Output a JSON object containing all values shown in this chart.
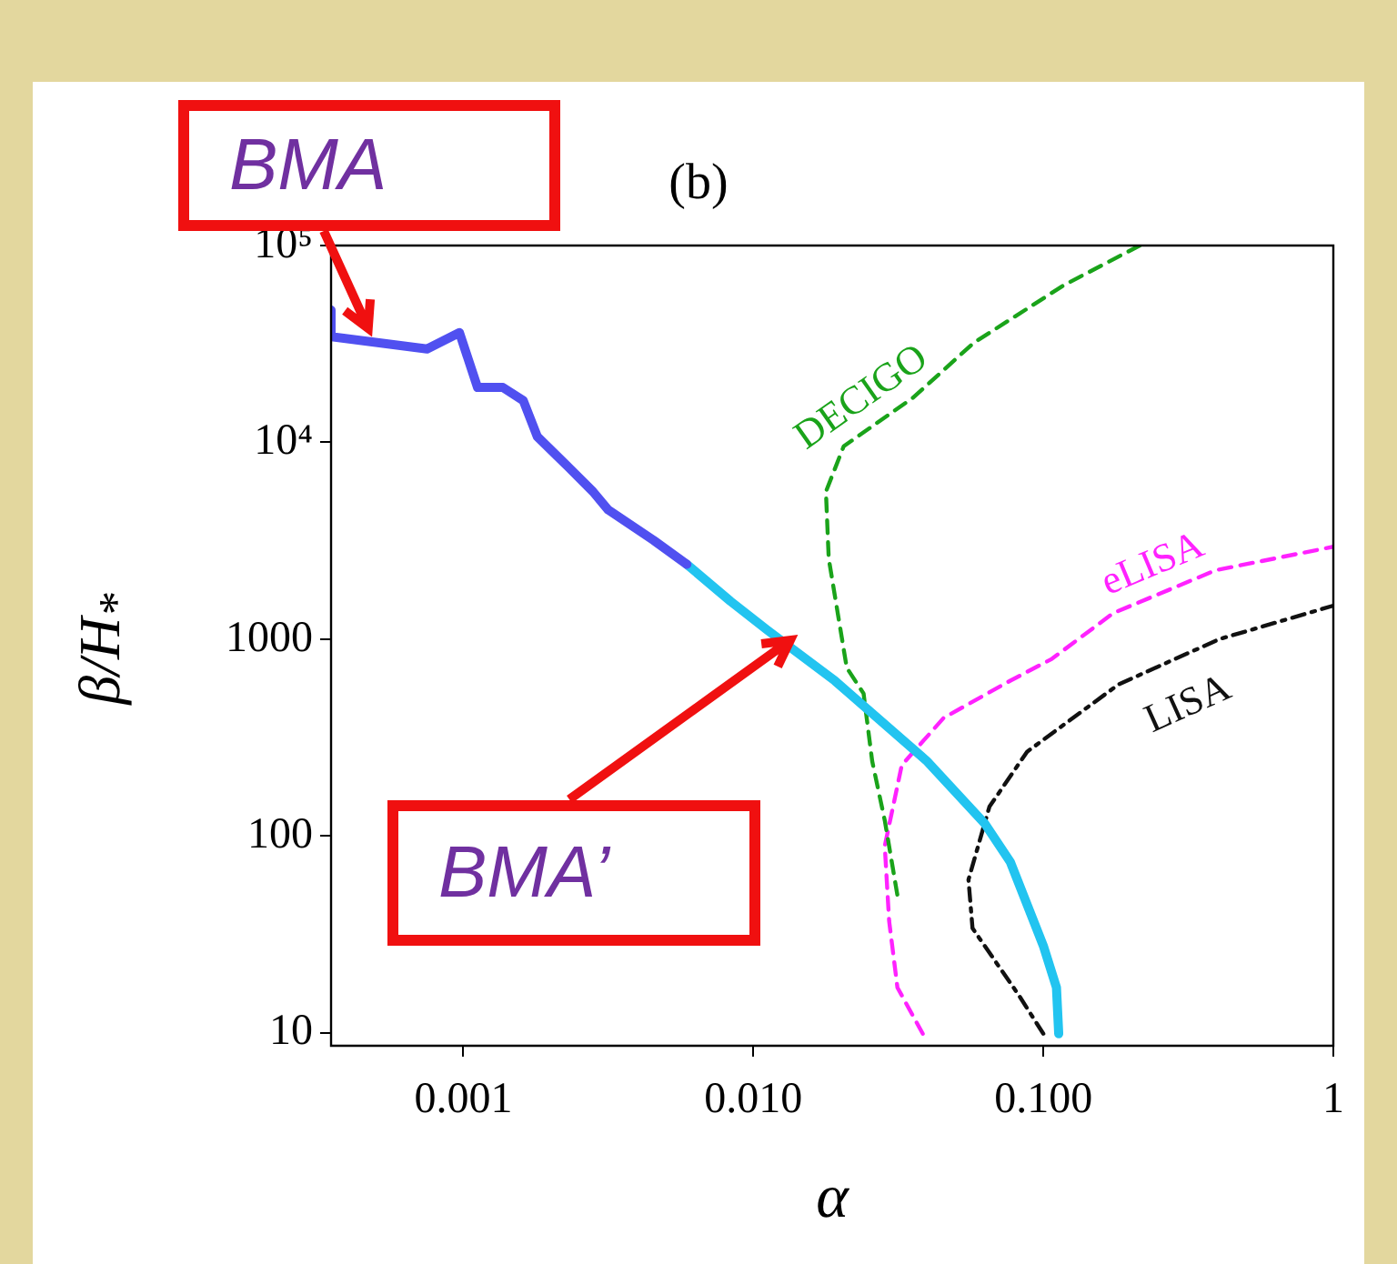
{
  "chart_data": {
    "type": "line",
    "title": "(b)",
    "xlabel": "α",
    "ylabel": "β/H$_{*}$",
    "log": "xy",
    "grid": false,
    "legend": false,
    "marker": "none",
    "xlim": [
      0.00035,
      1
    ],
    "ylim": [
      8.6,
      100000
    ],
    "xticks": [
      {
        "value": 0.001,
        "label": "0.001"
      },
      {
        "value": 0.01,
        "label": "0.010"
      },
      {
        "value": 0.1,
        "label": "0.100"
      },
      1
    ],
    "yticks": [
      10,
      100,
      1000,
      {
        "value": 10000,
        "label": "10⁴"
      },
      {
        "value": 100000,
        "label": "10⁵"
      }
    ],
    "series": [
      {
        "name": "BMA",
        "color": "#5050f0",
        "line_style": "solid",
        "x": [
          0.00035,
          0.00035,
          0.00075,
          0.00097,
          0.00112,
          0.00137,
          0.00161,
          0.0018,
          0.00231,
          0.0028,
          0.00316,
          0.00453,
          0.0059
        ],
        "values": [
          47000,
          34400,
          29800,
          36100,
          19000,
          19000,
          16300,
          10700,
          7460,
          5620,
          4540,
          3180,
          2400
        ]
      },
      {
        "name": "BMA’",
        "color": "#22c4f0",
        "line_style": "solid",
        "x": [
          0.0059,
          0.00834,
          0.0112,
          0.0191,
          0.0396,
          0.063,
          0.0769,
          0.1,
          0.111,
          0.113
        ],
        "values": [
          2400,
          1560,
          1110,
          615,
          241,
          115,
          74,
          27.7,
          17,
          9.9
        ]
      },
      {
        "name": "DECIGO",
        "color": "#1aa31a",
        "line_style": "dashed",
        "x": [
          0.215,
          0.118,
          0.0575,
          0.0356,
          0.0205,
          0.0178,
          0.0182,
          0.021,
          0.024,
          0.0257,
          0.0284,
          0.0314
        ],
        "values": [
          100000,
          63000,
          32000,
          16900,
          9550,
          5620,
          2570,
          716,
          530,
          240,
          120,
          50
        ]
      },
      {
        "name": "eLISA",
        "color": "#ff22ff",
        "line_style": "dashed",
        "x": [
          0.0384,
          0.0314,
          0.0294,
          0.0284,
          0.0325,
          0.0453,
          0.077,
          0.107,
          0.174,
          0.393,
          1
        ],
        "values": [
          9.9,
          17,
          37,
          89,
          229,
          398,
          616,
          794,
          1355,
          2240,
          2950
        ]
      },
      {
        "name": "LISA",
        "color": "#111111",
        "line_style": "dashdot",
        "x": [
          0.1,
          0.0824,
          0.057,
          0.0552,
          0.0652,
          0.0879,
          0.182,
          0.404,
          1
        ],
        "values": [
          9.9,
          15.5,
          34,
          60,
          141,
          268,
          590,
          1000,
          1480
        ]
      }
    ]
  }
}
